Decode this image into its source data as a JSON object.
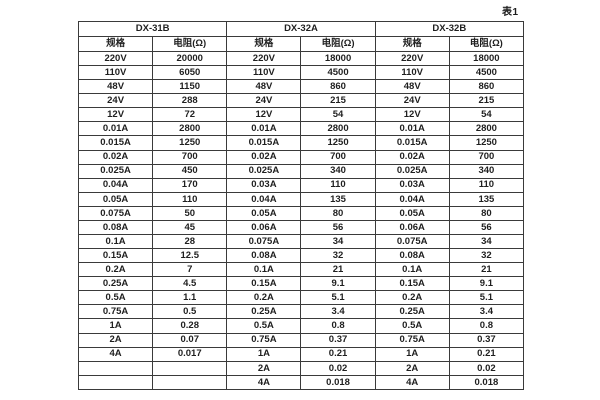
{
  "caption": "表1",
  "table": {
    "groups": [
      {
        "name": "DX-31B"
      },
      {
        "name": "DX-32A"
      },
      {
        "name": "DX-32B"
      }
    ],
    "col_headers": {
      "spec": "规格",
      "resistance": "电阻(Ω)"
    },
    "rows": [
      [
        "220V",
        "20000",
        "220V",
        "18000",
        "220V",
        "18000"
      ],
      [
        "110V",
        "6050",
        "110V",
        "4500",
        "110V",
        "4500"
      ],
      [
        "48V",
        "1150",
        "48V",
        "860",
        "48V",
        "860"
      ],
      [
        "24V",
        "288",
        "24V",
        "215",
        "24V",
        "215"
      ],
      [
        "12V",
        "72",
        "12V",
        "54",
        "12V",
        "54"
      ],
      [
        "0.01A",
        "2800",
        "0.01A",
        "2800",
        "0.01A",
        "2800"
      ],
      [
        "0.015A",
        "1250",
        "0.015A",
        "1250",
        "0.015A",
        "1250"
      ],
      [
        "0.02A",
        "700",
        "0.02A",
        "700",
        "0.02A",
        "700"
      ],
      [
        "0.025A",
        "450",
        "0.025A",
        "340",
        "0.025A",
        "340"
      ],
      [
        "0.04A",
        "170",
        "0.03A",
        "110",
        "0.03A",
        "110"
      ],
      [
        "0.05A",
        "110",
        "0.04A",
        "135",
        "0.04A",
        "135"
      ],
      [
        "0.075A",
        "50",
        "0.05A",
        "80",
        "0.05A",
        "80"
      ],
      [
        "0.08A",
        "45",
        "0.06A",
        "56",
        "0.06A",
        "56"
      ],
      [
        "0.1A",
        "28",
        "0.075A",
        "34",
        "0.075A",
        "34"
      ],
      [
        "0.15A",
        "12.5",
        "0.08A",
        "32",
        "0.08A",
        "32"
      ],
      [
        "0.2A",
        "7",
        "0.1A",
        "21",
        "0.1A",
        "21"
      ],
      [
        "0.25A",
        "4.5",
        "0.15A",
        "9.1",
        "0.15A",
        "9.1"
      ],
      [
        "0.5A",
        "1.1",
        "0.2A",
        "5.1",
        "0.2A",
        "5.1"
      ],
      [
        "0.75A",
        "0.5",
        "0.25A",
        "3.4",
        "0.25A",
        "3.4"
      ],
      [
        "1A",
        "0.28",
        "0.5A",
        "0.8",
        "0.5A",
        "0.8"
      ],
      [
        "2A",
        "0.07",
        "0.75A",
        "0.37",
        "0.75A",
        "0.37"
      ],
      [
        "4A",
        "0.017",
        "1A",
        "0.21",
        "1A",
        "0.21"
      ],
      [
        "",
        "",
        "2A",
        "0.02",
        "2A",
        "0.02"
      ],
      [
        "",
        "",
        "4A",
        "0.018",
        "4A",
        "0.018"
      ]
    ]
  }
}
